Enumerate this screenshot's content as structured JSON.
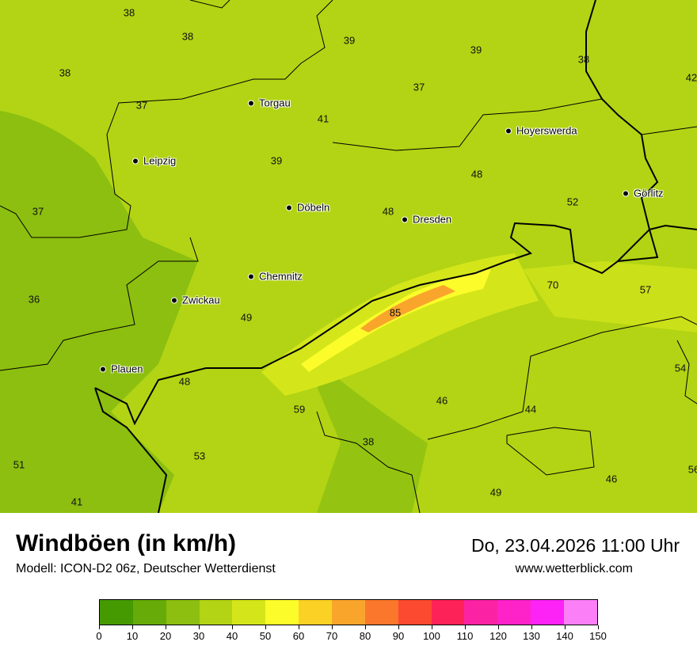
{
  "map": {
    "values": [
      "38",
      "38",
      "39",
      "39",
      "38",
      "42",
      "38",
      "37",
      "37",
      "41",
      "39",
      "48",
      "52",
      "37",
      "48",
      "70",
      "57",
      "36",
      "49",
      "85",
      "54",
      "48",
      "46",
      "59",
      "44",
      "38",
      "53",
      "51",
      "46",
      "49",
      "41",
      "56"
    ],
    "cities": [
      "Torgau",
      "Leipzig",
      "Hoyerswerda",
      "Döbeln",
      "Dresden",
      "Görlitz",
      "Chemnitz",
      "Zwickau",
      "Plauen"
    ]
  },
  "header": {
    "title": "Windböen (in km/h)",
    "subtitle": "Modell: ICON-D2 06z, Deutscher Wetterdienst",
    "datetime": "Do, 23.04.2026 11:00 Uhr",
    "website": "www.wetterblick.com"
  },
  "legend": {
    "colors": [
      "#449a00",
      "#66ab08",
      "#8cbf10",
      "#b2d414",
      "#d4e61a",
      "#fbfc2a",
      "#fad124",
      "#f9a52c",
      "#fa772c",
      "#fb4a30",
      "#fd2258",
      "#fb23a4",
      "#fd23c8",
      "#fd23f6",
      "#fb80f7"
    ],
    "ticks": [
      "0",
      "10",
      "20",
      "30",
      "40",
      "50",
      "60",
      "70",
      "80",
      "90",
      "100",
      "110",
      "120",
      "130",
      "140",
      "150"
    ]
  }
}
